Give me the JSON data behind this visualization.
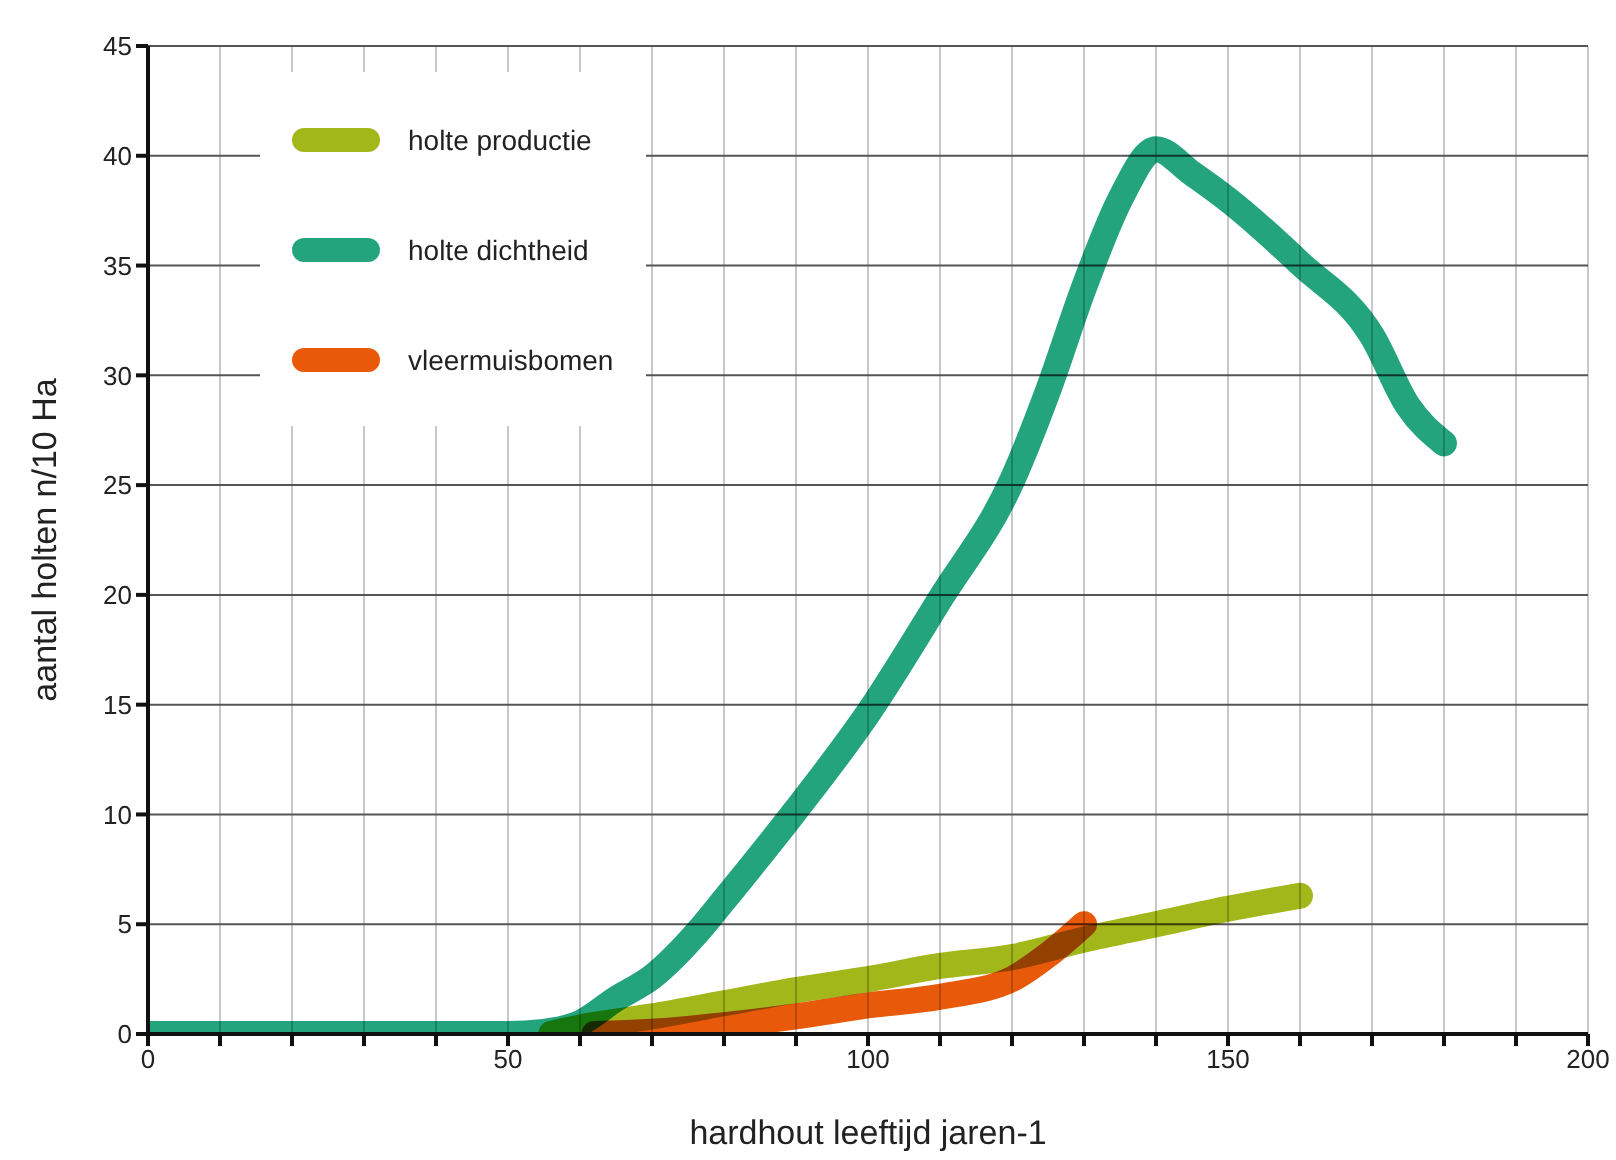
{
  "chart_data": {
    "type": "line",
    "xlabel": "hardhout leeftijd jaren-1",
    "ylabel": "aantal holten n/10 Ha",
    "xlim": [
      0,
      200
    ],
    "xticks": [
      0,
      {
        "value": 10,
        "label": null
      },
      {
        "value": 20,
        "label": null
      },
      {
        "value": 30,
        "label": null
      },
      {
        "value": 40,
        "label": null
      },
      50,
      {
        "value": 60,
        "label": null
      },
      {
        "value": 70,
        "label": null
      },
      {
        "value": 80,
        "label": null
      },
      {
        "value": 90,
        "label": null
      },
      100,
      {
        "value": 110,
        "label": null
      },
      {
        "value": 120,
        "label": null
      },
      {
        "value": 130,
        "label": null
      },
      {
        "value": 140,
        "label": null
      },
      150,
      {
        "value": 160,
        "label": null
      },
      {
        "value": 170,
        "label": null
      },
      {
        "value": 180,
        "label": null
      },
      {
        "value": 190,
        "label": null
      },
      200
    ],
    "ylim": [
      0,
      45
    ],
    "yticks": [
      0,
      5,
      10,
      15,
      20,
      25,
      30,
      35,
      40,
      45
    ],
    "grid": true,
    "legend": "top left",
    "marker": "none",
    "line_style": "solid",
    "series": [
      {
        "name": "holte productie",
        "color": "#a2b719",
        "x": [
          56,
          60,
          70,
          80,
          90,
          100,
          110,
          120,
          130,
          140,
          150,
          160
        ],
        "values": [
          0,
          0.3,
          0.8,
          1.4,
          2,
          2.5,
          3.1,
          3.5,
          4.3,
          5,
          5.7,
          6.3
        ]
      },
      {
        "name": "holte dichtheid",
        "color": "#23a47d",
        "x": [
          0,
          50,
          55,
          60,
          65,
          70,
          77,
          80,
          90,
          100,
          110,
          120,
          125,
          130,
          135,
          140,
          145,
          150,
          160,
          170,
          175,
          180
        ],
        "values": [
          0,
          0,
          0.1,
          0.5,
          1.6,
          2.6,
          4.9,
          6.1,
          10.2,
          14.6,
          19.8,
          25.2,
          29.3,
          34,
          38,
          40.3,
          39.2,
          38,
          35.1,
          31.8,
          28.6,
          26.9
        ]
      },
      {
        "name": "vleermuisbomen",
        "color": "#e85a09",
        "x": [
          62,
          70,
          80,
          90,
          100,
          110,
          120,
          125,
          130
        ],
        "values": [
          0,
          0.1,
          0.4,
          0.8,
          1.3,
          1.7,
          2.5,
          3.6,
          5
        ]
      }
    ]
  }
}
